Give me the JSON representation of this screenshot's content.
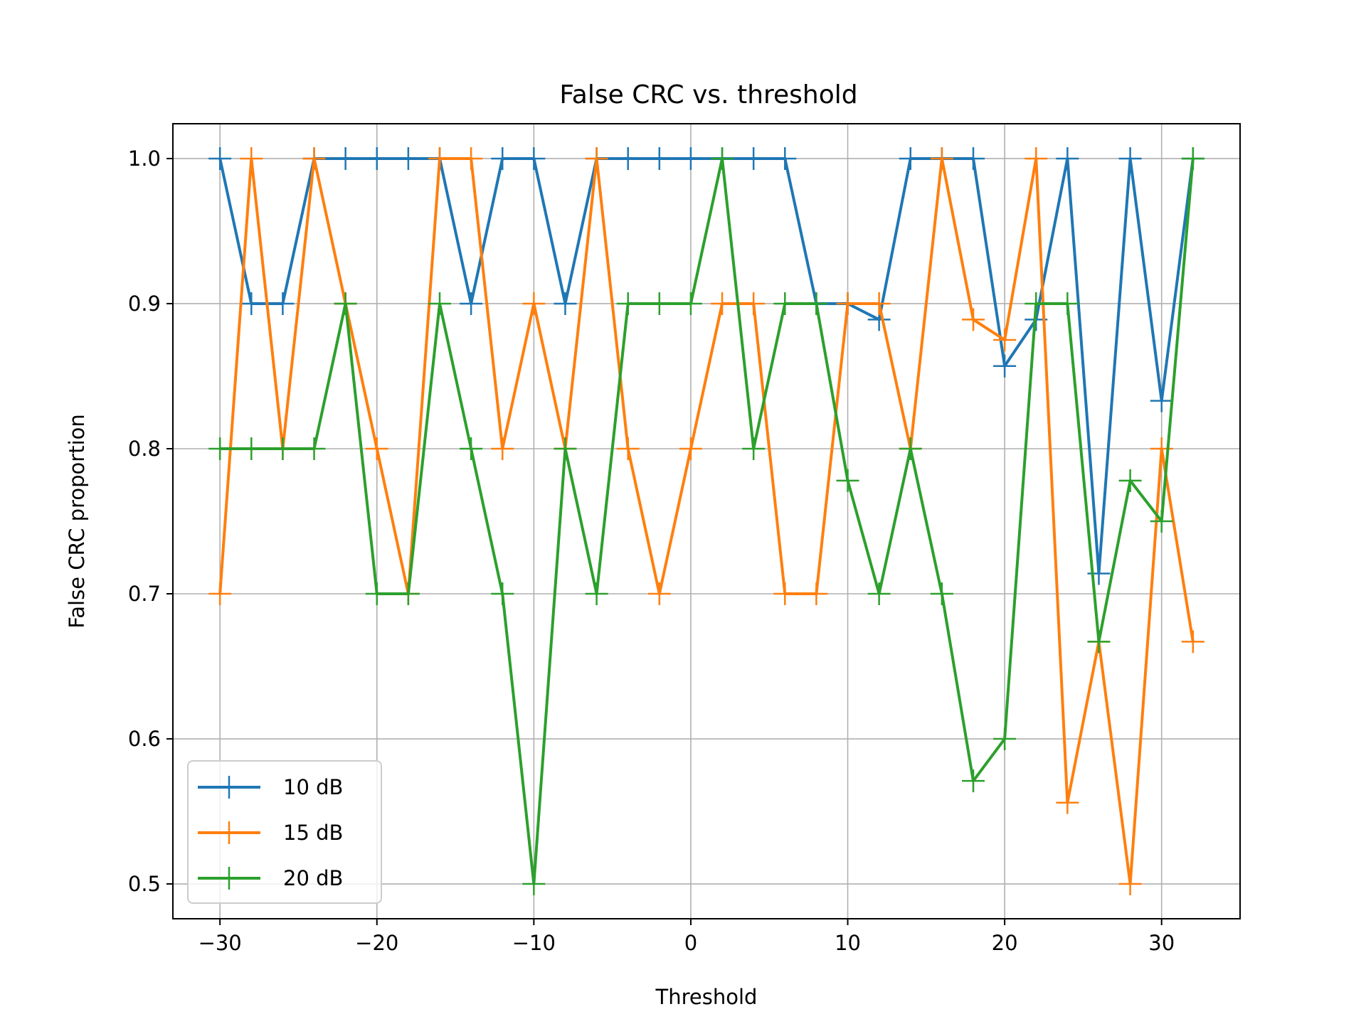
{
  "chart_data": {
    "type": "line",
    "title": "False CRC vs. threshold",
    "xlabel": "Threshold",
    "ylabel": "False CRC proportion",
    "xlim": [
      -33,
      35
    ],
    "ylim": [
      0.476,
      1.024
    ],
    "xticks": [
      -30,
      -20,
      -10,
      0,
      10,
      20,
      30
    ],
    "xtick_labels": [
      "−30",
      "−20",
      "−10",
      "0",
      "10",
      "20",
      "30"
    ],
    "yticks": [
      0.5,
      0.6,
      0.7,
      0.8,
      0.9,
      1.0
    ],
    "ytick_labels": [
      "0.5",
      "0.6",
      "0.7",
      "0.8",
      "0.9",
      "1.0"
    ],
    "grid": true,
    "legend_position": "lower-left",
    "marker": "plus",
    "x": [
      -30,
      -28,
      -26,
      -24,
      -22,
      -20,
      -18,
      -16,
      -14,
      -12,
      -10,
      -8,
      -6,
      -4,
      -2,
      0,
      2,
      4,
      6,
      8,
      10,
      12,
      14,
      16,
      18,
      20,
      22,
      24,
      26,
      28,
      30,
      32
    ],
    "series": [
      {
        "name": "10 dB",
        "color": "#1f77b4",
        "values": [
          1.0,
          0.9,
          0.9,
          1.0,
          1.0,
          1.0,
          1.0,
          1.0,
          0.9,
          1.0,
          1.0,
          0.9,
          1.0,
          1.0,
          1.0,
          1.0,
          1.0,
          1.0,
          1.0,
          0.9,
          0.9,
          0.889,
          1.0,
          1.0,
          1.0,
          0.857,
          0.889,
          1.0,
          0.714,
          1.0,
          0.833,
          1.0
        ]
      },
      {
        "name": "15 dB",
        "color": "#ff7f0e",
        "values": [
          0.7,
          1.0,
          0.8,
          1.0,
          0.9,
          0.8,
          0.7,
          1.0,
          1.0,
          0.8,
          0.9,
          0.8,
          1.0,
          0.8,
          0.7,
          0.8,
          0.9,
          0.9,
          0.7,
          0.7,
          0.9,
          0.9,
          0.8,
          1.0,
          0.889,
          0.875,
          1.0,
          0.556,
          0.667,
          0.5,
          0.8,
          0.667
        ]
      },
      {
        "name": "20 dB",
        "color": "#2ca02c",
        "values": [
          0.8,
          0.8,
          0.8,
          0.8,
          0.9,
          0.7,
          0.7,
          0.9,
          0.8,
          0.7,
          0.5,
          0.8,
          0.7,
          0.9,
          0.9,
          0.9,
          1.0,
          0.8,
          0.9,
          0.9,
          0.778,
          0.7,
          0.8,
          0.7,
          0.571,
          0.6,
          0.9,
          0.9,
          0.667,
          0.778,
          0.75,
          1.0
        ]
      }
    ]
  }
}
